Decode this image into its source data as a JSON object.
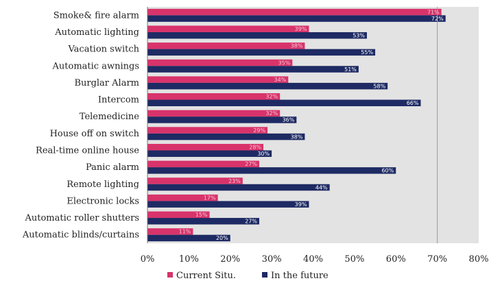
{
  "chart_data": {
    "type": "bar",
    "orientation": "horizontal",
    "categories": [
      "Smoke& fire alarm",
      "Automatic lighting",
      "Vacation switch",
      "Automatic awnings",
      "Burglar Alarm",
      "Intercom",
      "Telemedicine",
      "House off on switch",
      "Real-time online house",
      "Panic alarm",
      "Remote lighting",
      "Electronic locks",
      "Automatic roller shutters",
      "Automatic blinds/curtains"
    ],
    "series": [
      {
        "name": "Current Situ.",
        "color": "#d8336b",
        "values": [
          71,
          39,
          38,
          35,
          34,
          32,
          32,
          29,
          28,
          27,
          23,
          17,
          15,
          11
        ],
        "labels": [
          "71%",
          "39%",
          "38%",
          "35%",
          "34%",
          "32%",
          "32%",
          "29%",
          "28%",
          "27%",
          "23%",
          "17%",
          "15%",
          "11%"
        ]
      },
      {
        "name": "In the future",
        "color": "#1e2a63",
        "values": [
          72,
          53,
          55,
          51,
          58,
          66,
          36,
          38,
          30,
          60,
          44,
          39,
          27,
          20
        ],
        "labels": [
          "72%",
          "53%",
          "55%",
          "51%",
          "58%",
          "66%",
          "36%",
          "38%",
          "30%",
          "60%",
          "44%",
          "39%",
          "27%",
          "20%"
        ]
      }
    ],
    "xlim": [
      0,
      80
    ],
    "xticks": [
      "0%",
      "10%",
      "20%",
      "30%",
      "40%",
      "50%",
      "60%",
      "70%",
      "80%"
    ],
    "reference_line": 70,
    "legend": "bottom",
    "title": "",
    "xlabel": "",
    "ylabel": ""
  }
}
